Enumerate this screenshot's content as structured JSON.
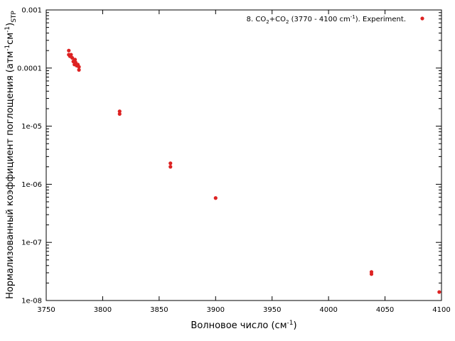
{
  "chart_data": {
    "type": "scatter",
    "title": "",
    "xlabel": {
      "main": "Волновое число (см",
      "sup": "-1",
      "close": ")"
    },
    "ylabel": {
      "p1": "Нормализованный коэффициент поглощения (атм",
      "sup1": "-1",
      "p2": "см",
      "sup2": "-1",
      "p3": ")",
      "sub": "STP"
    },
    "x_ticks": [
      "3750",
      "3800",
      "3850",
      "3900",
      "3950",
      "4000",
      "4050",
      "4100"
    ],
    "y_ticks": [
      "1e-08",
      "1e-07",
      "1e-06",
      "1e-05",
      "0.0001",
      "0.001"
    ],
    "xlim": [
      3750,
      4100
    ],
    "ylim": [
      1e-08,
      0.001
    ],
    "y_scale": "log",
    "grid": false,
    "legend_position": "top-right",
    "series": [
      {
        "name": {
          "a": "8. CO",
          "s1": "2",
          "b": "+CO",
          "s2": "2",
          "c": " (3770 - 4100 cm",
          "sup": "-1",
          "d": "). Experiment."
        },
        "color": "#dd2222",
        "points": [
          [
            3770.0,
            0.0002
          ],
          [
            3770.0,
            0.00017
          ],
          [
            3771.0,
            0.00016
          ],
          [
            3772.0,
            0.00017
          ],
          [
            3773.0,
            0.00015
          ],
          [
            3774.0,
            0.00013
          ],
          [
            3775.0,
            0.000115
          ],
          [
            3775.5,
            0.00014
          ],
          [
            3776.0,
            0.000125
          ],
          [
            3777.0,
            0.00011
          ],
          [
            3778.0,
            0.000115
          ],
          [
            3779.0,
            0.000105
          ],
          [
            3779.0,
            9.3e-05
          ],
          [
            3815.0,
            1.8e-05
          ],
          [
            3815.0,
            1.62e-05
          ],
          [
            3860.0,
            2.3e-06
          ],
          [
            3860.0,
            2e-06
          ],
          [
            3900.0,
            5.8e-07
          ],
          [
            4038.0,
            3.1e-08
          ],
          [
            4038.0,
            2.85e-08
          ],
          [
            4098.0,
            1.4e-08
          ]
        ]
      }
    ]
  }
}
